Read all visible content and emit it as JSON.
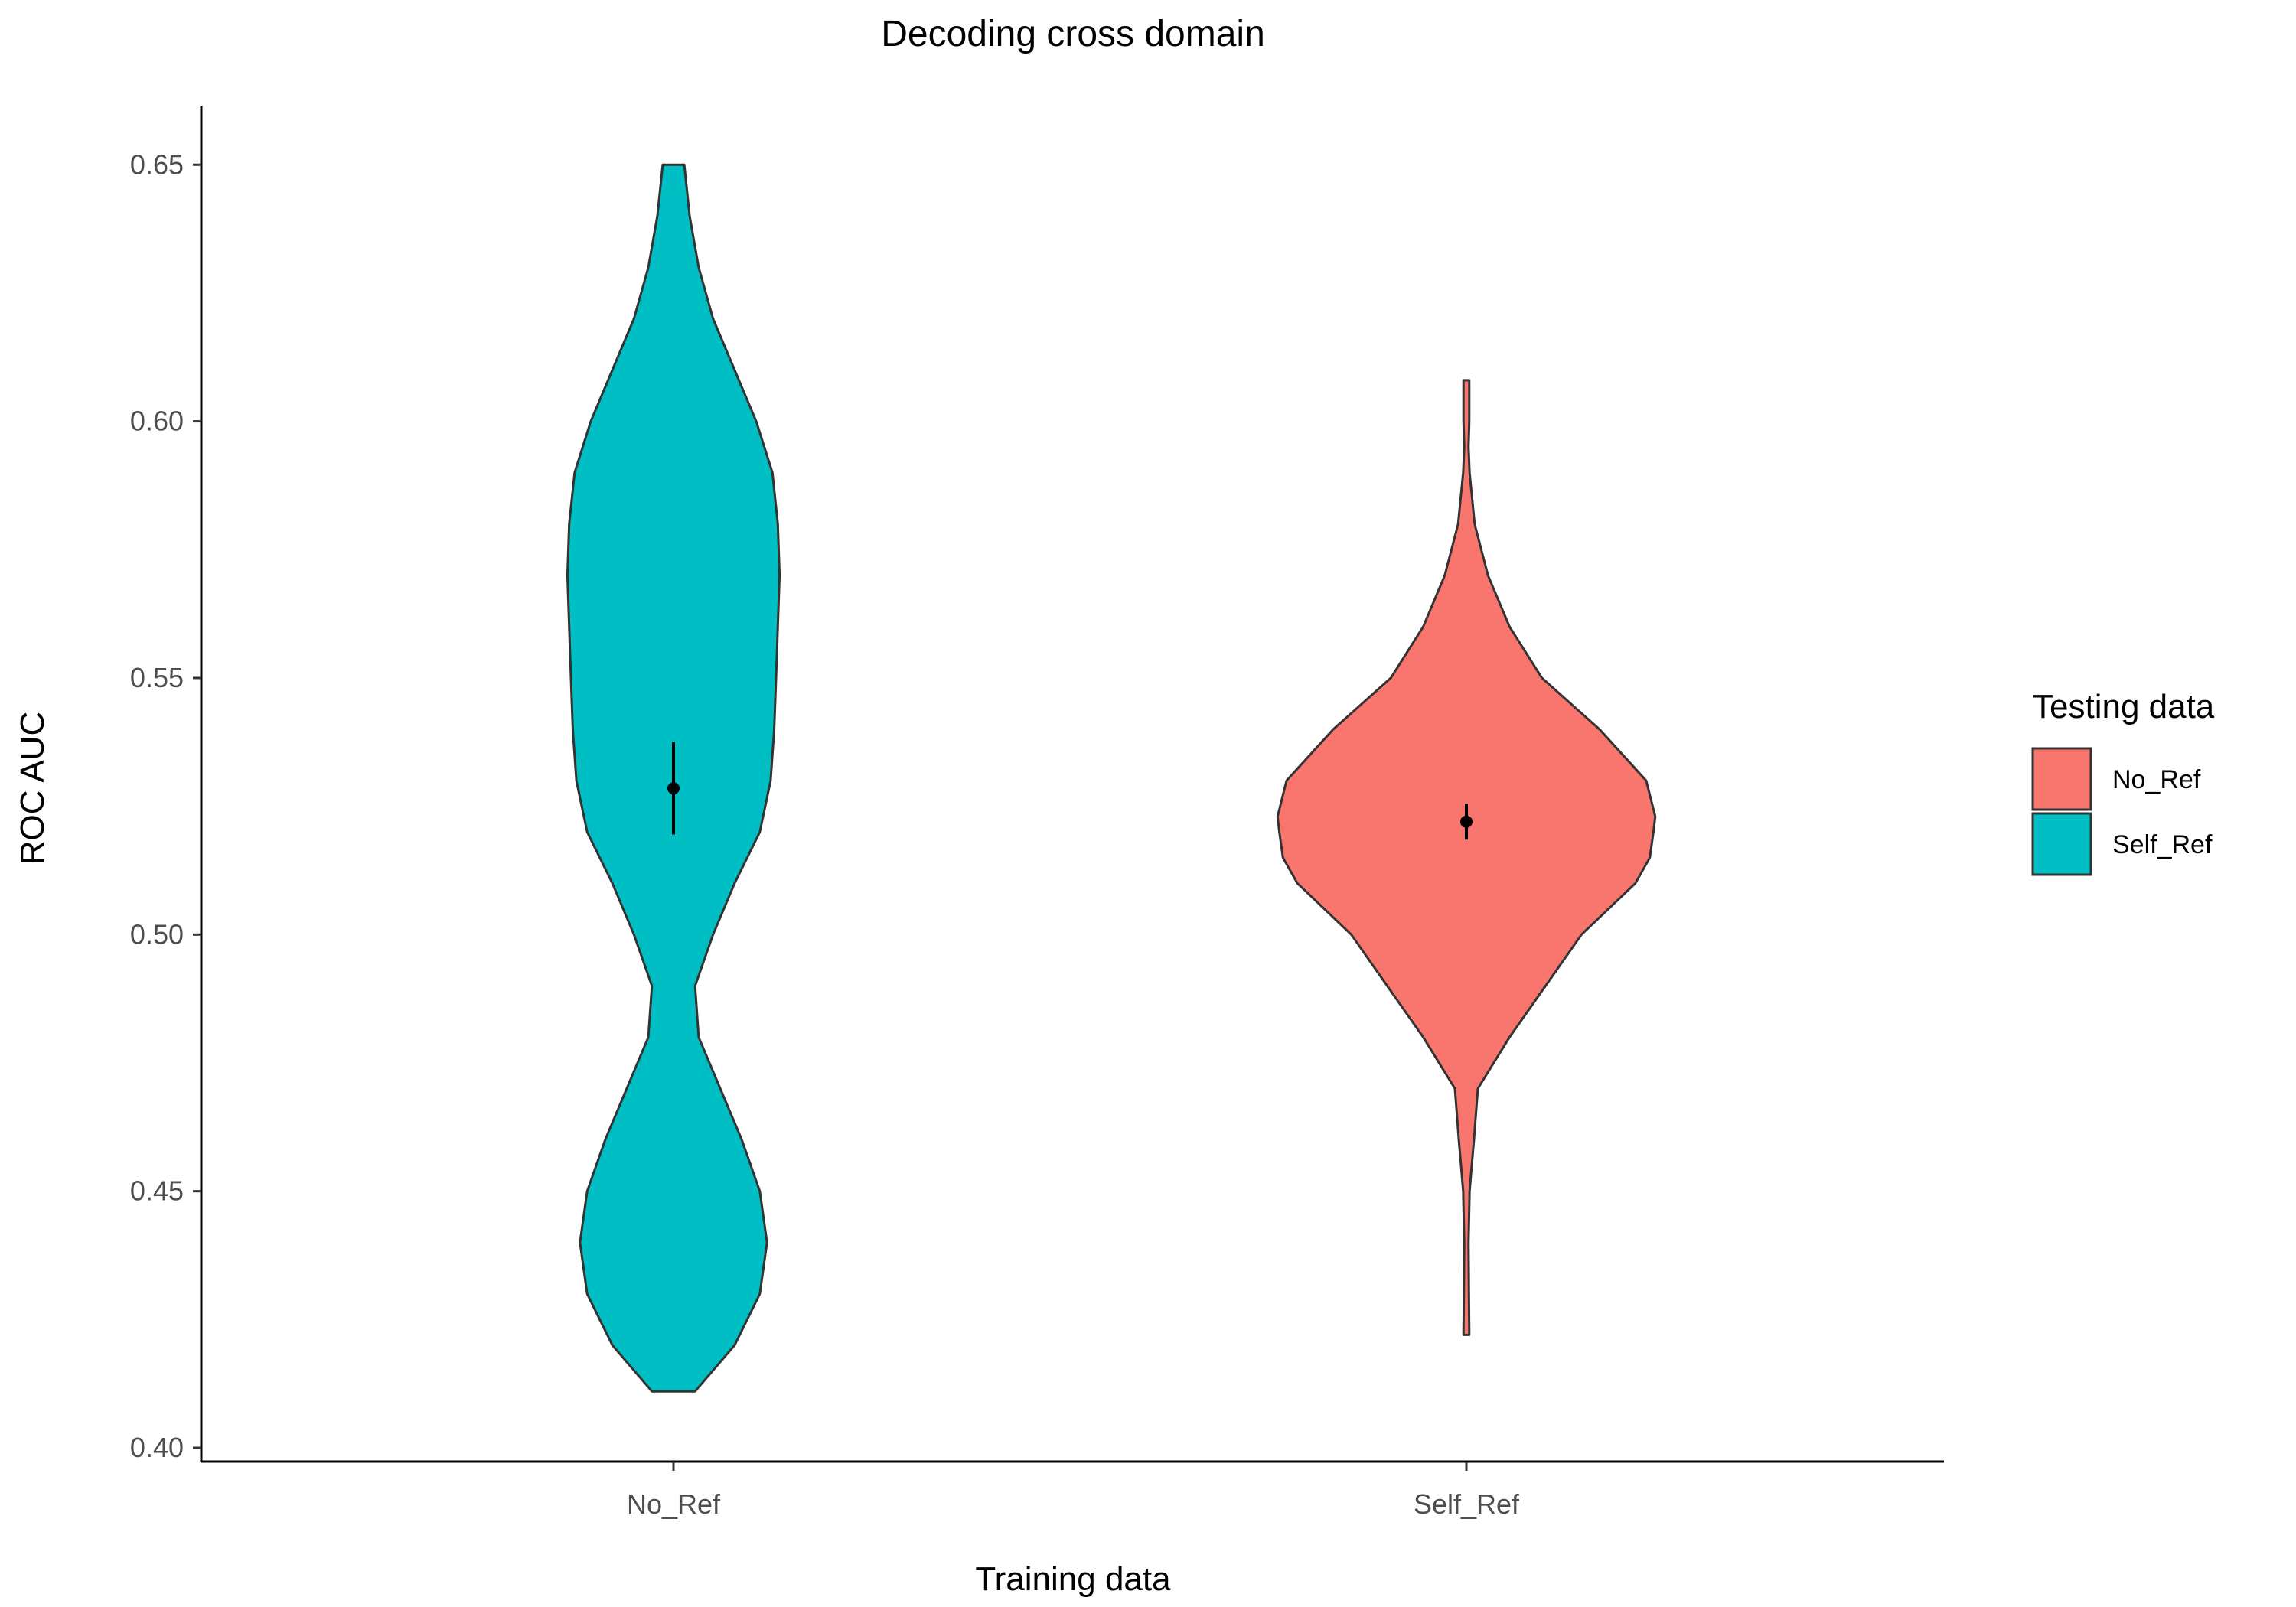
{
  "chart_data": {
    "type": "violin",
    "title": "Decoding cross domain",
    "xlabel": "Training data",
    "ylabel": "ROC AUC",
    "ylim": [
      0.4,
      0.66
    ],
    "yticks": [
      "0.40",
      "0.45",
      "0.50",
      "0.55",
      "0.60",
      "0.65"
    ],
    "categories": [
      "No_Ref",
      "Self_Ref"
    ],
    "legend": {
      "title": "Testing data",
      "position": "right",
      "entries": [
        {
          "label": "No_Ref",
          "color": "#F8766D"
        },
        {
          "label": "Self_Ref",
          "color": "#00BFC4"
        }
      ]
    },
    "grid": false,
    "series": [
      {
        "category": "No_Ref",
        "fill": "#00BFC4",
        "y_min": 0.411,
        "y_max": 0.65,
        "mean": 0.5285,
        "ci": [
          0.5195,
          0.5375
        ],
        "density": [
          [
            0.411,
            0.06
          ],
          [
            0.42,
            0.17
          ],
          [
            0.43,
            0.24
          ],
          [
            0.44,
            0.26
          ],
          [
            0.45,
            0.24
          ],
          [
            0.46,
            0.19
          ],
          [
            0.47,
            0.13
          ],
          [
            0.48,
            0.07
          ],
          [
            0.49,
            0.06
          ],
          [
            0.5,
            0.11
          ],
          [
            0.51,
            0.17
          ],
          [
            0.52,
            0.24
          ],
          [
            0.53,
            0.27
          ],
          [
            0.54,
            0.28
          ],
          [
            0.55,
            0.285
          ],
          [
            0.56,
            0.29
          ],
          [
            0.57,
            0.295
          ],
          [
            0.58,
            0.29
          ],
          [
            0.59,
            0.275
          ],
          [
            0.6,
            0.23
          ],
          [
            0.61,
            0.17
          ],
          [
            0.62,
            0.11
          ],
          [
            0.63,
            0.07
          ],
          [
            0.64,
            0.045
          ],
          [
            0.65,
            0.03
          ]
        ]
      },
      {
        "category": "Self_Ref",
        "fill": "#F8766D",
        "y_min": 0.422,
        "y_max": 0.608,
        "mean": 0.522,
        "ci": [
          0.5185,
          0.5255
        ],
        "density": [
          [
            0.422,
            0.008
          ],
          [
            0.43,
            0.007
          ],
          [
            0.44,
            0.006
          ],
          [
            0.45,
            0.009
          ],
          [
            0.455,
            0.015
          ],
          [
            0.46,
            0.021
          ],
          [
            0.47,
            0.032
          ],
          [
            0.48,
            0.12
          ],
          [
            0.49,
            0.22
          ],
          [
            0.5,
            0.32
          ],
          [
            0.51,
            0.47
          ],
          [
            0.515,
            0.51
          ],
          [
            0.52,
            0.52
          ],
          [
            0.523,
            0.525
          ],
          [
            0.53,
            0.5
          ],
          [
            0.54,
            0.37
          ],
          [
            0.55,
            0.21
          ],
          [
            0.56,
            0.12
          ],
          [
            0.57,
            0.06
          ],
          [
            0.58,
            0.023
          ],
          [
            0.59,
            0.009
          ],
          [
            0.595,
            0.006
          ],
          [
            0.6,
            0.008
          ],
          [
            0.608,
            0.008
          ]
        ]
      }
    ]
  }
}
